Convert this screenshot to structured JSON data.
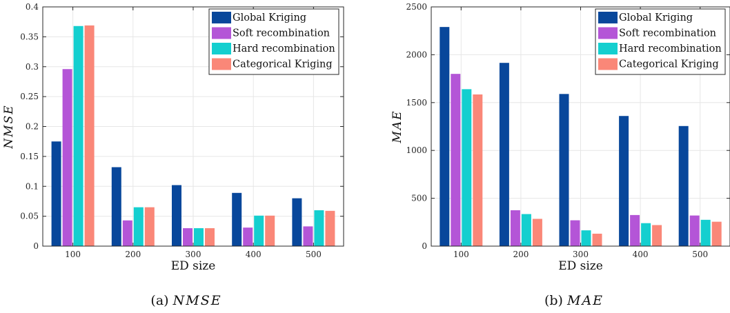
{
  "colors": [
    "#08479b",
    "#b455d7",
    "#14cfcf",
    "#fa8778"
  ],
  "chart_data": [
    {
      "type": "bar",
      "caption_prefix": "(a) ",
      "caption_math": "NMSE",
      "xlabel": "ED size",
      "ylabel": "NMSE",
      "categories": [
        "100",
        "200",
        "300",
        "400",
        "500"
      ],
      "ylim": [
        0,
        0.4
      ],
      "yticks": [
        0,
        0.05,
        0.1,
        0.15,
        0.2,
        0.25,
        0.3,
        0.35,
        0.4
      ],
      "ytick_labels": [
        "0",
        "0.05",
        "0.1",
        "0.15",
        "0.2",
        "0.25",
        "0.3",
        "0.35",
        "0.4"
      ],
      "grid": true,
      "legend": "top-right",
      "series": [
        {
          "name": "Global Kriging",
          "values": [
            0.175,
            0.132,
            0.102,
            0.089,
            0.08
          ]
        },
        {
          "name": "Soft recombination",
          "values": [
            0.296,
            0.043,
            0.03,
            0.031,
            0.033
          ]
        },
        {
          "name": "Hard recombination",
          "values": [
            0.368,
            0.065,
            0.03,
            0.051,
            0.06
          ]
        },
        {
          "name": "Categorical Kriging",
          "values": [
            0.369,
            0.065,
            0.03,
            0.051,
            0.059
          ]
        }
      ]
    },
    {
      "type": "bar",
      "caption_prefix": "(b) ",
      "caption_math": "MAE",
      "xlabel": "ED size",
      "ylabel": "MAE",
      "categories": [
        "100",
        "200",
        "300",
        "400",
        "500"
      ],
      "ylim": [
        0,
        2500
      ],
      "yticks": [
        0,
        500,
        1000,
        1500,
        2000,
        2500
      ],
      "ytick_labels": [
        "0",
        "500",
        "1000",
        "1500",
        "2000",
        "2500"
      ],
      "grid": true,
      "legend": "top-right",
      "series": [
        {
          "name": "Global Kriging",
          "values": [
            2290,
            1915,
            1590,
            1360,
            1255
          ]
        },
        {
          "name": "Soft recombination",
          "values": [
            1800,
            375,
            270,
            325,
            320
          ]
        },
        {
          "name": "Hard recombination",
          "values": [
            1640,
            335,
            165,
            240,
            275
          ]
        },
        {
          "name": "Categorical Kriging",
          "values": [
            1585,
            285,
            130,
            220,
            255
          ]
        }
      ]
    }
  ]
}
